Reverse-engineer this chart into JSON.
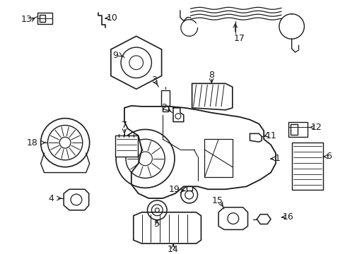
{
  "background_color": "#ffffff",
  "line_color": "#1a1a1a",
  "fig_width": 4.89,
  "fig_height": 3.6,
  "dpi": 100,
  "label_fontsize": 9,
  "label_fontsize_sm": 8
}
